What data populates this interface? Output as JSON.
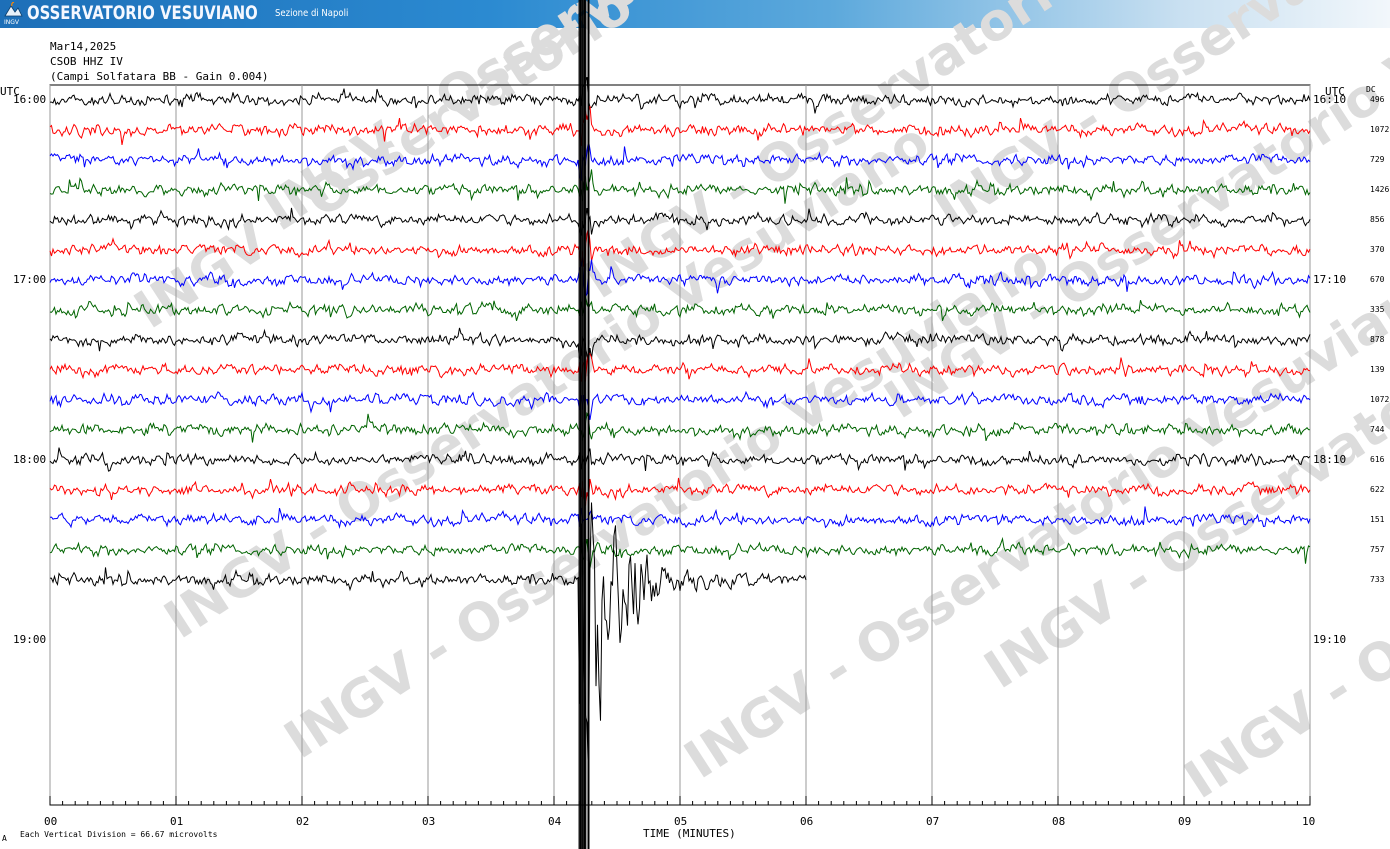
{
  "banner": {
    "title": "OSSERVATORIO VESUVIANO",
    "subtitle": "Sezione di Napoli",
    "logo_text": "INGV"
  },
  "header": {
    "date": "Mar14,2025",
    "station": "CSOB HHZ IV",
    "site": "(Campi Solfatara BB  - Gain 0.004)"
  },
  "left_axis_title": "UTC",
  "right_axis_title": "UTC",
  "dc_title": "DC",
  "watermark": "INGV - Osservatorio Vesuviano",
  "footer": {
    "xlabel": "TIME (MINUTES)",
    "scale_note": "Each Vertical Division =   66.67 microvolts",
    "corner_mark": "A"
  },
  "colors": {
    "trace_cycle": [
      "#000000",
      "#ff0000",
      "#0000ff",
      "#006400"
    ],
    "grid": "#9a9a9a",
    "watermark": "#dcdcdc"
  },
  "chart_data": {
    "type": "line",
    "title": "Mar14,2025 CSOB HHZ IV (Campi Solfatara BB  - Gain 0.004)",
    "xlabel": "TIME (MINUTES)",
    "x_ticks": [
      "00",
      "01",
      "02",
      "03",
      "04",
      "05",
      "06",
      "07",
      "08",
      "09",
      "10"
    ],
    "xlim": [
      0,
      10
    ],
    "trace_minutes": 10,
    "left_time_labels": [
      {
        "row": 0,
        "text": "16:00"
      },
      {
        "row": 6,
        "text": "17:00"
      },
      {
        "row": 12,
        "text": "18:00"
      },
      {
        "row": 18,
        "text": "19:00"
      }
    ],
    "right_time_labels": [
      {
        "row": 0,
        "text": "16:10"
      },
      {
        "row": 6,
        "text": "17:10"
      },
      {
        "row": 12,
        "text": "18:10"
      },
      {
        "row": 18,
        "text": "19:10"
      }
    ],
    "rows_total": 24,
    "series": [
      {
        "row": 0,
        "color": "#000000",
        "dc": "496",
        "end_minute": 10
      },
      {
        "row": 1,
        "color": "#ff0000",
        "dc": "1072",
        "end_minute": 10
      },
      {
        "row": 2,
        "color": "#0000ff",
        "dc": "729",
        "end_minute": 10
      },
      {
        "row": 3,
        "color": "#006400",
        "dc": "1426",
        "end_minute": 10
      },
      {
        "row": 4,
        "color": "#000000",
        "dc": "856",
        "end_minute": 10
      },
      {
        "row": 5,
        "color": "#ff0000",
        "dc": "370",
        "end_minute": 10
      },
      {
        "row": 6,
        "color": "#0000ff",
        "dc": "670",
        "end_minute": 10
      },
      {
        "row": 7,
        "color": "#006400",
        "dc": "335",
        "end_minute": 10
      },
      {
        "row": 8,
        "color": "#000000",
        "dc": "878",
        "end_minute": 10
      },
      {
        "row": 9,
        "color": "#ff0000",
        "dc": "139",
        "end_minute": 10
      },
      {
        "row": 10,
        "color": "#0000ff",
        "dc": "1072",
        "end_minute": 10
      },
      {
        "row": 11,
        "color": "#006400",
        "dc": "744",
        "end_minute": 10
      },
      {
        "row": 12,
        "color": "#000000",
        "dc": "616",
        "end_minute": 10
      },
      {
        "row": 13,
        "color": "#ff0000",
        "dc": "622",
        "end_minute": 10
      },
      {
        "row": 14,
        "color": "#0000ff",
        "dc": "151",
        "end_minute": 10
      },
      {
        "row": 15,
        "color": "#006400",
        "dc": "757",
        "end_minute": 10
      },
      {
        "row": 16,
        "color": "#000000",
        "dc": "733",
        "end_minute": 6
      }
    ],
    "event": {
      "row": 16,
      "start_minute": 4.2,
      "peak_minute": 4.25,
      "decay_end_minute": 6.0
    }
  }
}
